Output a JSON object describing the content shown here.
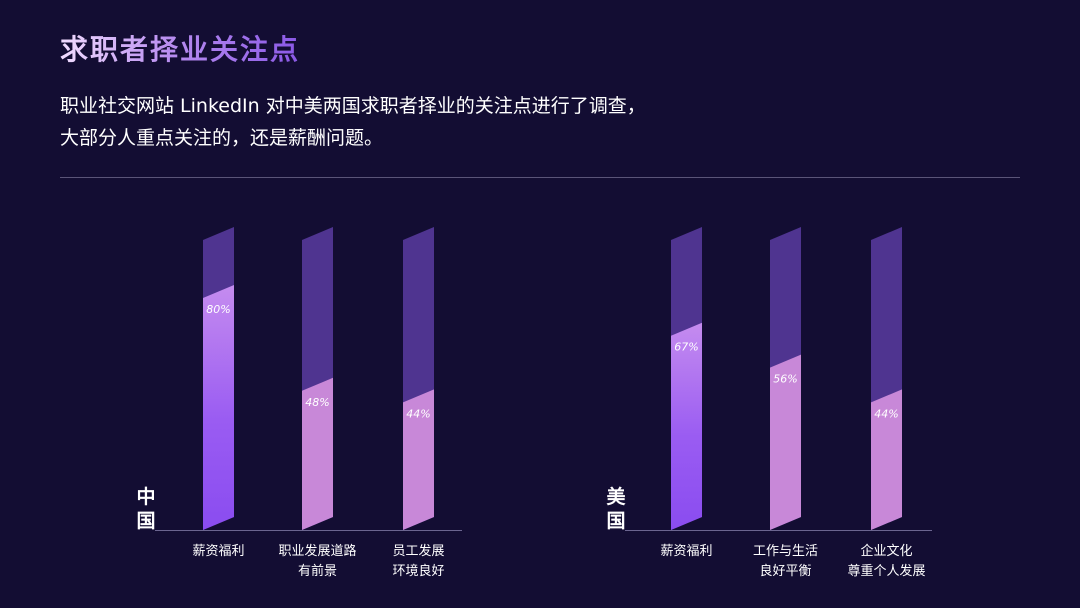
{
  "header": {
    "title": "求职者择业关注点",
    "description_lines": [
      "职业社交网站 LinkedIn 对中美两国求职者择业的关注点进行了调查，",
      "大部分人重点关注的，还是薪酬问题。"
    ]
  },
  "colors": {
    "background": "#130d33",
    "bar_track": "#4f3490",
    "bar_highlight_top": "#c58cef",
    "bar_highlight_bottom": "#8a4cf0",
    "bar_normal": "#c888d8",
    "divider": "#5a5478"
  },
  "chart_data": [
    {
      "type": "bar",
      "group_label": "中国",
      "unit": "%",
      "ylim": [
        0,
        100
      ],
      "categories": [
        [
          "薪资福利"
        ],
        [
          "职业发展道路",
          "有前景"
        ],
        [
          "员工发展",
          "环境良好"
        ]
      ],
      "values": [
        80,
        48,
        44
      ],
      "value_labels": [
        "80%",
        "48%",
        "44%"
      ]
    },
    {
      "type": "bar",
      "group_label": "美国",
      "unit": "%",
      "ylim": [
        0,
        100
      ],
      "categories": [
        [
          "薪资福利"
        ],
        [
          "工作与生活",
          "良好平衡"
        ],
        [
          "企业文化",
          "尊重个人发展"
        ]
      ],
      "values": [
        67,
        56,
        44
      ],
      "value_labels": [
        "67%",
        "56%",
        "44%"
      ]
    }
  ]
}
